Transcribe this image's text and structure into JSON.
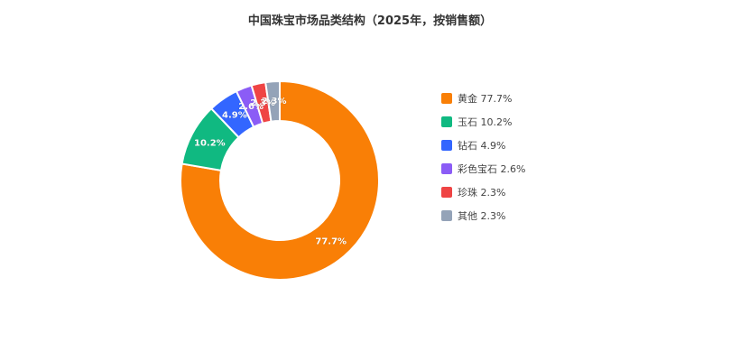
{
  "chart_data": {
    "type": "pie",
    "title": "中国珠宝市场品类结构（2025年，按销售额）",
    "donut": true,
    "legend_position": "right",
    "categories": [
      "黄金",
      "玉石",
      "钻石",
      "彩色宝石",
      "珍珠",
      "其他"
    ],
    "values": [
      77.7,
      10.2,
      4.9,
      2.6,
      2.3,
      2.3
    ],
    "legend_labels": [
      "黄金 77.7%",
      "玉石 10.2%",
      "钻石 4.9%",
      "彩色宝石 2.6%",
      "珍珠 2.3%",
      "其他 2.3%"
    ],
    "slice_labels": [
      "77.7%",
      "10.2%",
      "4.9%",
      "2.6%",
      "2.3%",
      "2.3%"
    ],
    "colors": [
      "#f97f06",
      "#10b981",
      "#3366ff",
      "#8b5cf6",
      "#ef4444",
      "#94a3b8"
    ]
  }
}
